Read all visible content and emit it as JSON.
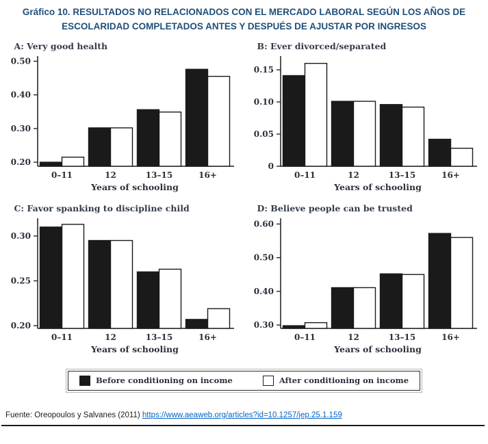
{
  "title": "Gráfico 10. RESULTADOS NO RELACIONADOS CON EL MERCADO LABORAL SEGÚN LOS AÑOS DE ESCOLARIDAD COMPLETADOS ANTES Y DESPUÉS DE AJUSTAR POR INGRESOS",
  "colors": {
    "title": "#1f4e79",
    "ink": "#2b2f3a",
    "bar_black": "#1a1a1a",
    "bar_white": "#ffffff",
    "link": "#0563c1"
  },
  "legend": {
    "items": [
      {
        "label": "Before conditioning on income",
        "fill": "#1a1a1a"
      },
      {
        "label": "After conditioning on income",
        "fill": "#ffffff"
      }
    ]
  },
  "footer": {
    "source_text": "Fuente: Oreopoulos y Salvanes (2011)",
    "link_text": "https://www.aeaweb.org/articles?id=10.1257/jep.25.1.159"
  },
  "chart_data": [
    {
      "type": "bar",
      "title": "A: Very good health",
      "xlabel": "Years of schooling",
      "categories": [
        "0–11",
        "12",
        "13–15",
        "16+"
      ],
      "series": [
        {
          "name": "Before conditioning on income",
          "values": [
            0.2,
            0.302,
            0.356,
            0.476
          ]
        },
        {
          "name": "After conditioning on income",
          "values": [
            0.215,
            0.302,
            0.349,
            0.455
          ]
        }
      ],
      "yticks": [
        0.2,
        0.3,
        0.4,
        0.5
      ],
      "ylim": [
        0.188,
        0.505
      ],
      "legend_position": "bottom-shared",
      "grid": false
    },
    {
      "type": "bar",
      "title": "B: Ever divorced/separated",
      "xlabel": "Years of schooling",
      "categories": [
        "0–11",
        "12",
        "13–15",
        "16+"
      ],
      "series": [
        {
          "name": "Before conditioning on income",
          "values": [
            0.141,
            0.101,
            0.096,
            0.042
          ]
        },
        {
          "name": "After conditioning on income",
          "values": [
            0.16,
            0.101,
            0.092,
            0.028
          ]
        }
      ],
      "yticks": [
        0,
        0.05,
        0.1,
        0.15
      ],
      "ylim": [
        0,
        0.166
      ],
      "legend_position": "bottom-shared",
      "grid": false
    },
    {
      "type": "bar",
      "title": "C: Favor spanking to discipline child",
      "xlabel": "Years of schooling",
      "categories": [
        "0–11",
        "12",
        "13–15",
        "16+"
      ],
      "series": [
        {
          "name": "Before conditioning on income",
          "values": [
            0.31,
            0.295,
            0.26,
            0.207
          ]
        },
        {
          "name": "After conditioning on income",
          "values": [
            0.313,
            0.295,
            0.263,
            0.219
          ]
        }
      ],
      "yticks": [
        0.2,
        0.25,
        0.3
      ],
      "ylim": [
        0.197,
        0.316
      ],
      "legend_position": "bottom-shared",
      "grid": false
    },
    {
      "type": "bar",
      "title": "D: Believe people can be trusted",
      "xlabel": "Years of schooling",
      "categories": [
        "0–11",
        "12",
        "13–15",
        "16+"
      ],
      "series": [
        {
          "name": "Before conditioning on income",
          "values": [
            0.298,
            0.411,
            0.452,
            0.572
          ]
        },
        {
          "name": "After conditioning on income",
          "values": [
            0.307,
            0.411,
            0.45,
            0.56
          ]
        }
      ],
      "yticks": [
        0.3,
        0.4,
        0.5,
        0.6
      ],
      "ylim": [
        0.29,
        0.607
      ],
      "legend_position": "bottom-shared",
      "grid": false
    }
  ]
}
